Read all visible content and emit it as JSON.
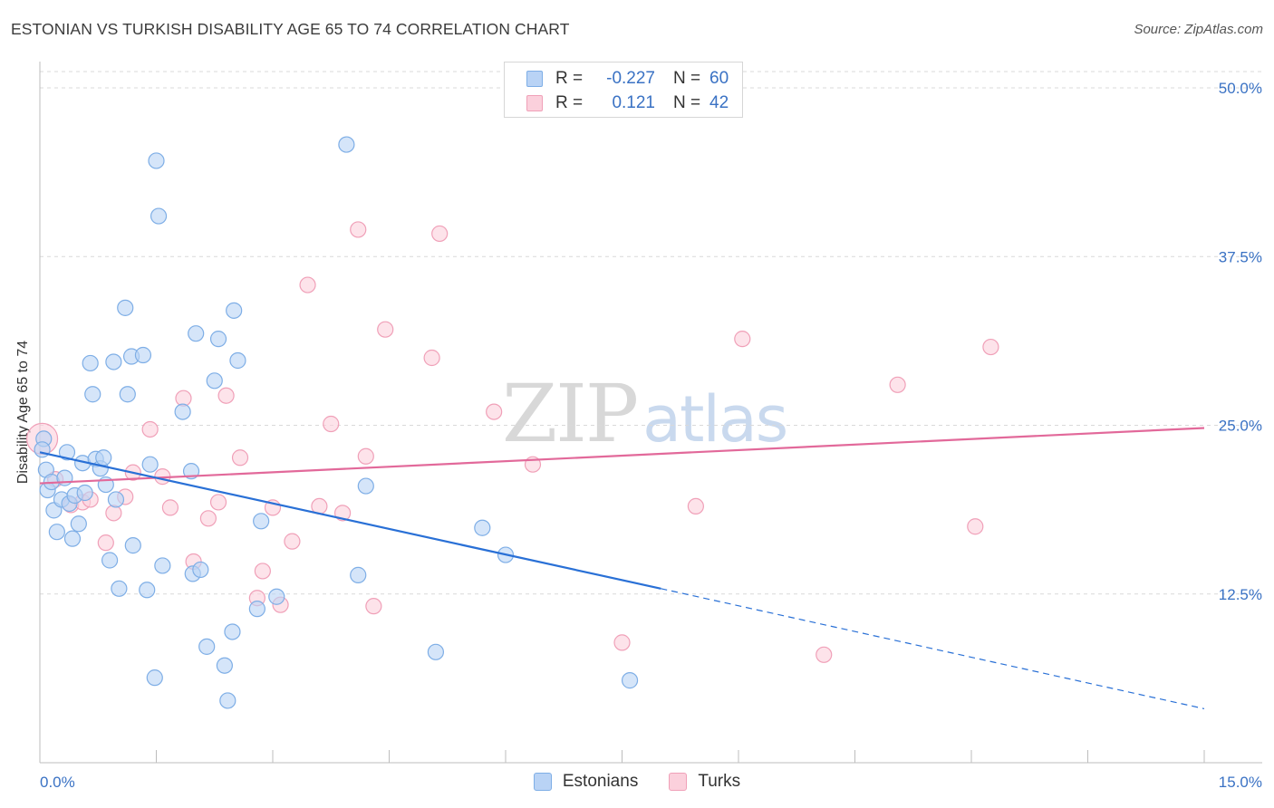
{
  "title": "ESTONIAN VS TURKISH DISABILITY AGE 65 TO 74 CORRELATION CHART",
  "source": "Source: ZipAtlas.com",
  "watermark": {
    "zip": "ZIP",
    "atlas": "atlas"
  },
  "colors": {
    "estonian_fill": "#b9d3f5",
    "estonian_stroke": "#7eaee6",
    "estonian_line": "#2970d6",
    "turk_fill": "#fbd0dc",
    "turk_stroke": "#f0a0b8",
    "turk_line": "#e2699a",
    "tick_label": "#3a72c4",
    "grid": "#d9d9d9"
  },
  "legend": {
    "rows": [
      {
        "r_label": "R =",
        "r_value": "-0.227",
        "n_label": "N =",
        "n_value": "60"
      },
      {
        "r_label": "R =",
        "r_value": "0.121",
        "n_label": "N =",
        "n_value": "42"
      }
    ]
  },
  "bottom_legend": {
    "estonians": "Estonians",
    "turks": "Turks"
  },
  "chart_data": {
    "type": "scatter",
    "title": "ESTONIAN VS TURKISH DISABILITY AGE 65 TO 74 CORRELATION CHART",
    "xlabel": "",
    "ylabel": "Disability Age 65 to 74",
    "xlim": [
      0,
      15
    ],
    "ylim": [
      0,
      52
    ],
    "x_ticks": [
      {
        "v": 0,
        "label": "0.0%"
      },
      {
        "v": 15,
        "label": "15.0%"
      }
    ],
    "y_ticks": [
      {
        "v": 12.5,
        "label": "12.5%"
      },
      {
        "v": 25,
        "label": "25.0%"
      },
      {
        "v": 37.5,
        "label": "37.5%"
      },
      {
        "v": 50,
        "label": "50.0%"
      }
    ],
    "grid": true,
    "legend_position": "top-center",
    "series": [
      {
        "name": "Estonians",
        "points": [
          [
            0.05,
            24.0
          ],
          [
            0.08,
            21.7
          ],
          [
            0.1,
            20.2
          ],
          [
            0.15,
            20.8
          ],
          [
            0.18,
            18.7
          ],
          [
            0.22,
            17.1
          ],
          [
            0.28,
            19.5
          ],
          [
            0.32,
            21.1
          ],
          [
            0.35,
            23.0
          ],
          [
            0.38,
            19.2
          ],
          [
            0.42,
            16.6
          ],
          [
            0.45,
            19.8
          ],
          [
            0.5,
            17.7
          ],
          [
            0.55,
            22.2
          ],
          [
            0.58,
            20.0
          ],
          [
            0.65,
            29.6
          ],
          [
            0.68,
            27.3
          ],
          [
            0.72,
            22.5
          ],
          [
            0.78,
            21.8
          ],
          [
            0.82,
            22.6
          ],
          [
            0.85,
            20.6
          ],
          [
            0.9,
            15.0
          ],
          [
            0.95,
            29.7
          ],
          [
            0.98,
            19.5
          ],
          [
            1.02,
            12.9
          ],
          [
            1.1,
            33.7
          ],
          [
            1.13,
            27.3
          ],
          [
            1.18,
            30.1
          ],
          [
            1.2,
            16.1
          ],
          [
            1.33,
            30.2
          ],
          [
            1.38,
            12.8
          ],
          [
            1.42,
            22.1
          ],
          [
            1.5,
            44.6
          ],
          [
            1.53,
            40.5
          ],
          [
            1.58,
            14.6
          ],
          [
            1.48,
            6.3
          ],
          [
            1.84,
            26.0
          ],
          [
            1.95,
            21.6
          ],
          [
            1.97,
            14.0
          ],
          [
            2.01,
            31.8
          ],
          [
            2.07,
            14.3
          ],
          [
            2.15,
            8.6
          ],
          [
            2.25,
            28.3
          ],
          [
            2.3,
            31.4
          ],
          [
            2.38,
            7.2
          ],
          [
            2.42,
            4.6
          ],
          [
            2.5,
            33.5
          ],
          [
            2.55,
            29.8
          ],
          [
            2.48,
            9.7
          ],
          [
            2.8,
            11.4
          ],
          [
            2.85,
            17.9
          ],
          [
            3.05,
            12.3
          ],
          [
            3.95,
            45.8
          ],
          [
            4.1,
            13.9
          ],
          [
            4.2,
            20.5
          ],
          [
            5.1,
            8.2
          ],
          [
            5.7,
            17.4
          ],
          [
            6.0,
            15.4
          ],
          [
            7.6,
            6.1
          ],
          [
            0.03,
            23.2
          ]
        ],
        "trend": {
          "x": [
            0,
            8.0
          ],
          "y": [
            23.0,
            12.9
          ]
        },
        "trend_dashed": {
          "x": [
            8.0,
            15.0
          ],
          "y": [
            12.9,
            4.0
          ]
        }
      },
      {
        "name": "Turks",
        "points": [
          [
            0.03,
            24.0
          ],
          [
            0.2,
            21.0
          ],
          [
            0.4,
            19.1
          ],
          [
            0.55,
            19.3
          ],
          [
            0.65,
            19.5
          ],
          [
            0.95,
            18.5
          ],
          [
            0.85,
            16.3
          ],
          [
            1.1,
            19.7
          ],
          [
            1.2,
            21.5
          ],
          [
            1.42,
            24.7
          ],
          [
            1.58,
            21.2
          ],
          [
            1.68,
            18.9
          ],
          [
            1.85,
            27.0
          ],
          [
            1.98,
            14.9
          ],
          [
            2.17,
            18.1
          ],
          [
            2.3,
            19.3
          ],
          [
            2.4,
            27.2
          ],
          [
            2.58,
            22.6
          ],
          [
            2.8,
            12.2
          ],
          [
            2.87,
            14.2
          ],
          [
            3.0,
            18.9
          ],
          [
            3.1,
            11.7
          ],
          [
            3.25,
            16.4
          ],
          [
            3.45,
            35.4
          ],
          [
            3.6,
            19.0
          ],
          [
            3.75,
            25.1
          ],
          [
            3.9,
            18.5
          ],
          [
            4.1,
            39.5
          ],
          [
            4.2,
            22.7
          ],
          [
            4.3,
            11.6
          ],
          [
            4.45,
            32.1
          ],
          [
            5.05,
            30.0
          ],
          [
            5.15,
            39.2
          ],
          [
            5.85,
            26.0
          ],
          [
            6.35,
            22.1
          ],
          [
            7.5,
            8.9
          ],
          [
            8.45,
            19.0
          ],
          [
            9.05,
            31.4
          ],
          [
            10.1,
            8.0
          ],
          [
            11.05,
            28.0
          ],
          [
            12.05,
            17.5
          ],
          [
            12.25,
            30.8
          ]
        ],
        "trend": {
          "x": [
            0,
            15.0
          ],
          "y": [
            20.7,
            24.8
          ]
        }
      }
    ]
  }
}
